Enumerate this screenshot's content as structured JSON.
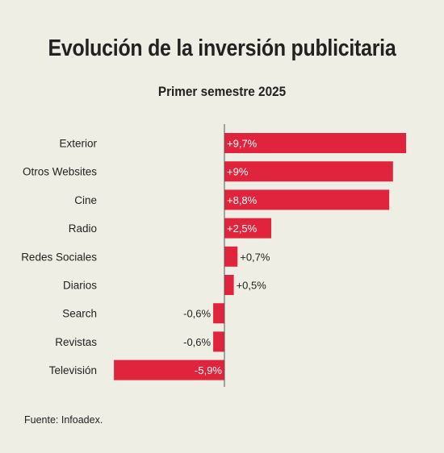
{
  "title": "Evolución de la inversión publicitaria",
  "subtitle": "Primer semestre 2025",
  "source": "Fuente: Infoadex.",
  "colors": {
    "bar": "#e0243d",
    "background": "#efeee4",
    "axis": "#555555"
  },
  "chart_data": {
    "type": "bar",
    "orientation": "horizontal",
    "title": "Evolución de la inversión publicitaria",
    "subtitle": "Primer semestre 2025",
    "xlabel": "",
    "ylabel": "",
    "grid": false,
    "categories": [
      "Exterior",
      "Otros Websites",
      "Cine",
      "Radio",
      "Redes Sociales",
      "Diarios",
      "Search",
      "Revistas",
      "Televisión"
    ],
    "values": [
      9.7,
      9,
      8.8,
      2.5,
      0.7,
      0.5,
      -0.6,
      -0.6,
      -5.9
    ],
    "labels": [
      "+9,7%",
      "+9%",
      "+8,8%",
      "+2,5%",
      "+0,7%",
      "+0,5%",
      "-0,6%",
      "-0,6%",
      "-5,9%"
    ],
    "xlim": [
      -5.9,
      9.7
    ]
  }
}
